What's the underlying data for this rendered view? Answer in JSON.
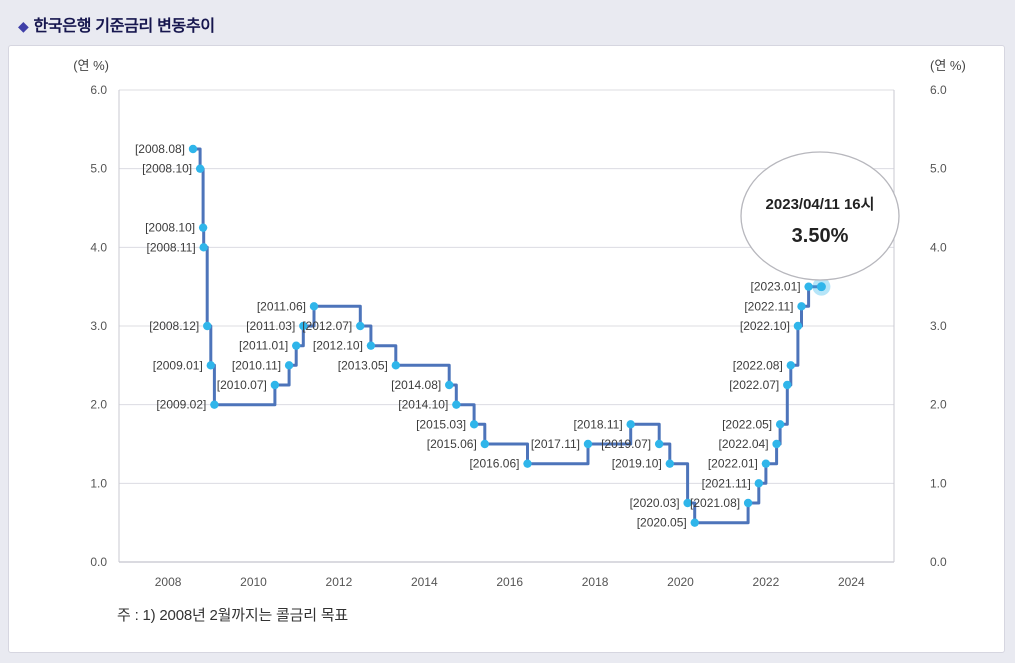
{
  "page": {
    "title_bullet": "◆",
    "title": "한국은행 기준금리 변동추이",
    "note": "주 : 1) 2008년 2월까지는 콜금리 목표"
  },
  "chart_data": {
    "type": "line",
    "subtype": "step",
    "title": "한국은행 기준금리 변동추이",
    "unit_label": "(연 %)",
    "ylim": [
      0.0,
      6.0
    ],
    "ytick_step": 1.0,
    "yticks": [
      "0.0",
      "1.0",
      "2.0",
      "3.0",
      "4.0",
      "5.0",
      "6.0"
    ],
    "xticks": [
      2008,
      2010,
      2012,
      2014,
      2016,
      2018,
      2020,
      2022,
      2024
    ],
    "x_range": [
      2006.85,
      2025.0
    ],
    "grid": "horizontal",
    "legend": "none",
    "line_color": "#4d74ba",
    "marker_color": "#2fb5ea",
    "points": [
      {
        "label": "[2008.08]",
        "year": 2008,
        "month": 8,
        "value": 5.25
      },
      {
        "label": "[2008.10]",
        "year": 2008,
        "month": 10,
        "value": 5.0
      },
      {
        "label": "[2008.10]",
        "year": 2008,
        "month": 10,
        "value": 4.25
      },
      {
        "label": "[2008.11]",
        "year": 2008,
        "month": 11,
        "value": 4.0
      },
      {
        "label": "[2008.12]",
        "year": 2008,
        "month": 12,
        "value": 3.0
      },
      {
        "label": "[2009.01]",
        "year": 2009,
        "month": 1,
        "value": 2.5
      },
      {
        "label": "[2009.02]",
        "year": 2009,
        "month": 2,
        "value": 2.0
      },
      {
        "label": "[2010.07]",
        "year": 2010,
        "month": 7,
        "value": 2.25
      },
      {
        "label": "[2010.11]",
        "year": 2010,
        "month": 11,
        "value": 2.5
      },
      {
        "label": "[2011.01]",
        "year": 2011,
        "month": 1,
        "value": 2.75
      },
      {
        "label": "[2011.03]",
        "year": 2011,
        "month": 3,
        "value": 3.0
      },
      {
        "label": "[2011.06]",
        "year": 2011,
        "month": 6,
        "value": 3.25
      },
      {
        "label": "[2012.07]",
        "year": 2012,
        "month": 7,
        "value": 3.0
      },
      {
        "label": "[2012.10]",
        "year": 2012,
        "month": 10,
        "value": 2.75
      },
      {
        "label": "[2013.05]",
        "year": 2013,
        "month": 5,
        "value": 2.5
      },
      {
        "label": "[2014.08]",
        "year": 2014,
        "month": 8,
        "value": 2.25
      },
      {
        "label": "[2014.10]",
        "year": 2014,
        "month": 10,
        "value": 2.0
      },
      {
        "label": "[2015.03]",
        "year": 2015,
        "month": 3,
        "value": 1.75
      },
      {
        "label": "[2015.06]",
        "year": 2015,
        "month": 6,
        "value": 1.5
      },
      {
        "label": "[2016.06]",
        "year": 2016,
        "month": 6,
        "value": 1.25
      },
      {
        "label": "[2017.11]",
        "year": 2017,
        "month": 11,
        "value": 1.5
      },
      {
        "label": "[2018.11]",
        "year": 2018,
        "month": 11,
        "value": 1.75
      },
      {
        "label": "[2019.07]",
        "year": 2019,
        "month": 7,
        "value": 1.5
      },
      {
        "label": "[2019.10]",
        "year": 2019,
        "month": 10,
        "value": 1.25
      },
      {
        "label": "[2020.03]",
        "year": 2020,
        "month": 3,
        "value": 0.75
      },
      {
        "label": "[2020.05]",
        "year": 2020,
        "month": 5,
        "value": 0.5
      },
      {
        "label": "[2021.08]",
        "year": 2021,
        "month": 8,
        "value": 0.75
      },
      {
        "label": "[2021.11]",
        "year": 2021,
        "month": 11,
        "value": 1.0
      },
      {
        "label": "[2022.01]",
        "year": 2022,
        "month": 1,
        "value": 1.25
      },
      {
        "label": "[2022.04]",
        "year": 2022,
        "month": 4,
        "value": 1.5
      },
      {
        "label": "[2022.05]",
        "year": 2022,
        "month": 5,
        "value": 1.75
      },
      {
        "label": "[2022.07]",
        "year": 2022,
        "month": 7,
        "value": 2.25
      },
      {
        "label": "[2022.08]",
        "year": 2022,
        "month": 8,
        "value": 2.5
      },
      {
        "label": "[2022.10]",
        "year": 2022,
        "month": 10,
        "value": 3.0
      },
      {
        "label": "[2022.11]",
        "year": 2022,
        "month": 11,
        "value": 3.25
      },
      {
        "label": "[2023.01]",
        "year": 2023,
        "month": 1,
        "value": 3.5
      }
    ],
    "line_end": {
      "t": 2023.3,
      "value": 3.5
    },
    "callout": {
      "line1": "2023/04/11 16시",
      "line2": "3.50%"
    }
  }
}
